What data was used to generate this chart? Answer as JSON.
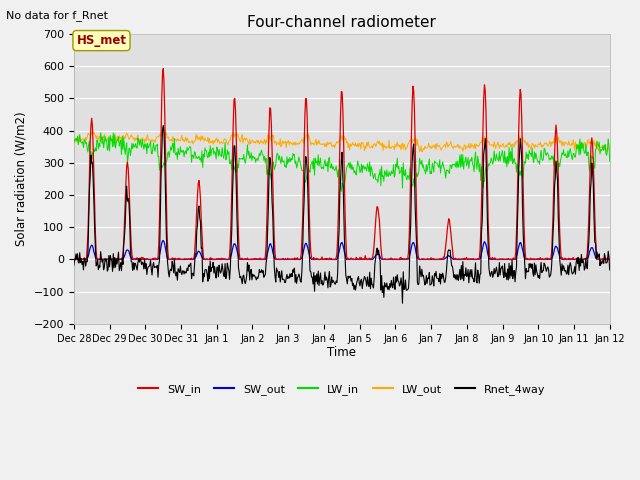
{
  "title": "Four-channel radiometer",
  "top_left_text": "No data for f_Rnet",
  "ylabel": "Solar radiation (W/m2)",
  "xlabel": "Time",
  "legend_label": "HS_met",
  "channels": [
    "SW_in",
    "SW_out",
    "LW_in",
    "LW_out",
    "Rnet_4way"
  ],
  "colors": {
    "SW_in": "#dd0000",
    "SW_out": "#0000dd",
    "LW_in": "#00dd00",
    "LW_out": "#ffaa00",
    "Rnet_4way": "#000000"
  },
  "ylim": [
    -200,
    700
  ],
  "yticks": [
    -200,
    -100,
    0,
    100,
    200,
    300,
    400,
    500,
    600,
    700
  ],
  "background_color": "#f0f0f0",
  "plot_bg_color": "#e0e0e0",
  "xtick_labels": [
    "Dec 28",
    "Dec 29",
    "Dec 30",
    "Dec 31",
    "Jan 1",
    "Jan 2",
    "Jan 3",
    "Jan 4",
    "Jan 5",
    "Jan 6",
    "Jan 7",
    "Jan 8",
    "Jan 9",
    "Jan 10",
    "Jan 11",
    "Jan 12"
  ],
  "figsize": [
    6.4,
    4.8
  ],
  "dpi": 100
}
